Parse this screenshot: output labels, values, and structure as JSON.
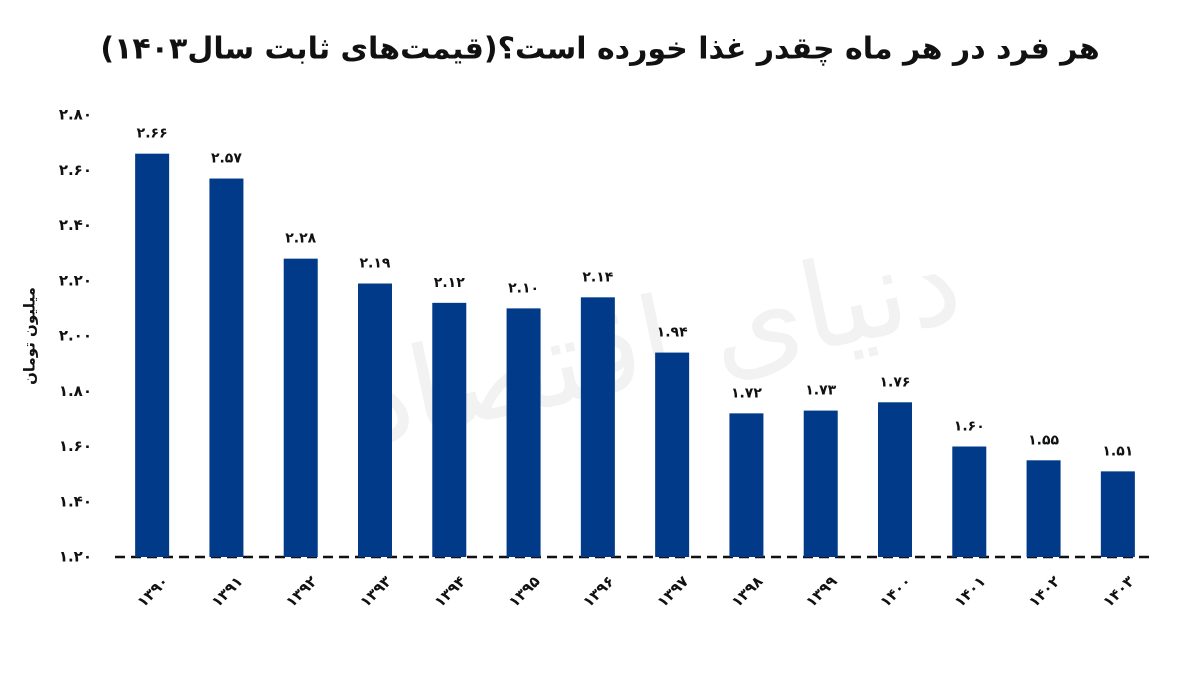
{
  "chart_data": {
    "type": "bar",
    "title": "هر فرد در هر ماه چقدر غذا خورده است؟(قیمت‌های ثابت سال۱۴۰۳)",
    "y_label": "میلیون تومان",
    "watermark": "دنیای اقتصاد",
    "categories": [
      "۱۳۹۰",
      "۱۳۹۱",
      "۱۳۹۲",
      "۱۳۹۳",
      "۱۳۹۴",
      "۱۳۹۵",
      "۱۳۹۶",
      "۱۳۹۷",
      "۱۳۹۸",
      "۱۳۹۹",
      "۱۴۰۰",
      "۱۴۰۱",
      "۱۴۰۲",
      "۱۴۰۳"
    ],
    "values": [
      2.66,
      2.57,
      2.28,
      2.19,
      2.12,
      2.1,
      2.14,
      1.94,
      1.72,
      1.73,
      1.76,
      1.6,
      1.55,
      1.51
    ],
    "value_labels": [
      "۲.۶۶",
      "۲.۵۷",
      "۲.۲۸",
      "۲.۱۹",
      "۲.۱۲",
      "۲.۱۰",
      "۲.۱۴",
      "۱.۹۴",
      "۱.۷۲",
      "۱.۷۳",
      "۱.۷۶",
      "۱.۶۰",
      "۱.۵۵",
      "۱.۵۱"
    ],
    "color": "#003a88",
    "ylim": [
      1.2,
      2.8
    ],
    "yticks": [
      {
        "value": 1.2,
        "label": "۱.۲۰"
      },
      {
        "value": 1.4,
        "label": "۱.۴۰"
      },
      {
        "value": 1.6,
        "label": "۱.۶۰"
      },
      {
        "value": 1.8,
        "label": "۱.۸۰"
      },
      {
        "value": 2.0,
        "label": "۲.۰۰"
      },
      {
        "value": 2.2,
        "label": "۲.۲۰"
      },
      {
        "value": 2.4,
        "label": "۲.۴۰"
      },
      {
        "value": 2.6,
        "label": "۲.۶۰"
      },
      {
        "value": 2.8,
        "label": "۲.۸۰"
      }
    ],
    "grid": false
  }
}
